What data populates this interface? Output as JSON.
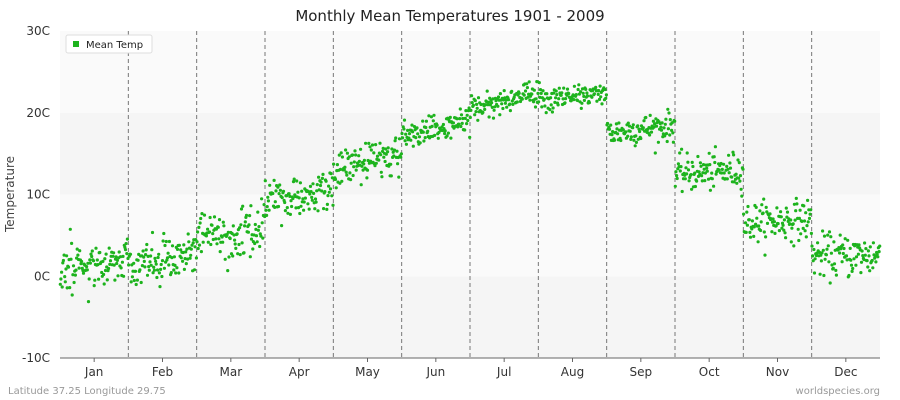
{
  "chart_data": {
    "type": "scatter",
    "title": "Monthly Mean Temperatures 1901 - 2009",
    "ylabel": "Temperature",
    "ylim": [
      -10,
      30
    ],
    "y_ticks": [
      {
        "value": -10,
        "label": "-10C"
      },
      {
        "value": 0,
        "label": "0C"
      },
      {
        "value": 10,
        "label": "10C"
      },
      {
        "value": 20,
        "label": "20C"
      },
      {
        "value": 30,
        "label": "30C"
      }
    ],
    "categories": [
      "Jan",
      "Feb",
      "Mar",
      "Apr",
      "May",
      "Jun",
      "Jul",
      "Aug",
      "Sep",
      "Oct",
      "Nov",
      "Dec"
    ],
    "grid": "horizontal bands with dashed vertical month separators",
    "legend": {
      "position": "top-left"
    },
    "series": [
      {
        "name": "Mean Temp",
        "color": "#1db31d",
        "years": [
          1901,
          2009
        ],
        "monthly_typical": [
          {
            "month": "Jan",
            "start": 0.5,
            "end": 2.0,
            "spread": 1.5
          },
          {
            "month": "Feb",
            "start": 1.0,
            "end": 3.0,
            "spread": 1.5
          },
          {
            "month": "Mar",
            "start": 4.5,
            "end": 6.0,
            "spread": 1.4
          },
          {
            "month": "Apr",
            "start": 9.0,
            "end": 10.5,
            "spread": 1.2
          },
          {
            "month": "May",
            "start": 13.0,
            "end": 15.0,
            "spread": 1.1
          },
          {
            "month": "Jun",
            "start": 17.0,
            "end": 19.0,
            "spread": 0.9
          },
          {
            "month": "Jul",
            "start": 20.5,
            "end": 22.5,
            "spread": 0.8
          },
          {
            "month": "Aug",
            "start": 21.5,
            "end": 22.5,
            "spread": 0.8
          },
          {
            "month": "Sep",
            "start": 17.5,
            "end": 18.5,
            "spread": 0.9
          },
          {
            "month": "Oct",
            "start": 12.5,
            "end": 13.0,
            "spread": 1.1
          },
          {
            "month": "Nov",
            "start": 6.5,
            "end": 7.0,
            "spread": 1.2
          },
          {
            "month": "Dec",
            "start": 2.5,
            "end": 2.5,
            "spread": 1.3
          }
        ]
      }
    ]
  },
  "footer": {
    "location": "Latitude 37.25 Longitude 29.75",
    "source": "worldspecies.org"
  }
}
